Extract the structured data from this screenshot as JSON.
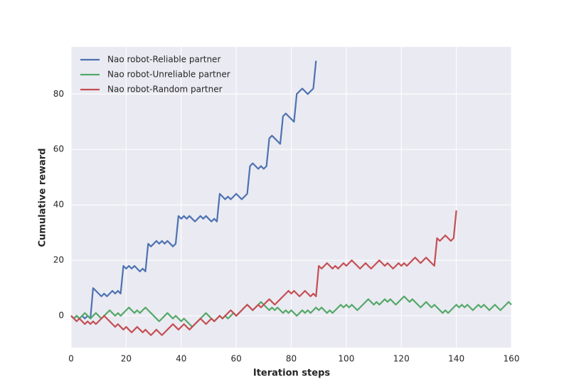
{
  "chart_data": {
    "type": "line",
    "xlabel": "Iteration steps",
    "ylabel": "Cumulative reward",
    "xlim": [
      0,
      160
    ],
    "ylim": [
      -11.5,
      97
    ],
    "xticks": [
      0,
      20,
      40,
      60,
      80,
      100,
      120,
      140,
      160
    ],
    "yticks": [
      0,
      20,
      40,
      60,
      80
    ],
    "grid": true,
    "legend": "upper left",
    "series": [
      {
        "name": "Nao robot-Reliable partner",
        "color": "#4c72b0",
        "x": [
          0,
          1,
          2,
          3,
          4,
          5,
          6,
          7,
          8,
          9,
          10,
          11,
          12,
          13,
          14,
          15,
          16,
          17,
          18,
          19,
          20,
          21,
          22,
          23,
          24,
          25,
          26,
          27,
          28,
          29,
          30,
          31,
          32,
          33,
          34,
          35,
          36,
          37,
          38,
          39,
          40,
          41,
          42,
          43,
          44,
          45,
          46,
          47,
          48,
          49,
          50,
          51,
          52,
          53,
          54,
          55,
          56,
          57,
          58,
          59,
          60,
          61,
          62,
          63,
          64,
          65,
          66,
          67,
          68,
          69,
          70,
          71,
          72,
          73,
          74,
          75,
          76,
          77,
          78,
          79,
          80,
          81,
          82,
          83,
          84,
          85,
          86,
          87,
          88,
          89
        ],
        "values": [
          0,
          -1,
          0,
          -1,
          0,
          -1,
          0,
          -1,
          10,
          9,
          8,
          7,
          8,
          7,
          8,
          9,
          8,
          9,
          8,
          18,
          17,
          18,
          17,
          18,
          17,
          16,
          17,
          16,
          26,
          25,
          26,
          27,
          26,
          27,
          26,
          27,
          26,
          25,
          26,
          36,
          35,
          36,
          35,
          36,
          35,
          34,
          35,
          36,
          35,
          36,
          35,
          34,
          35,
          34,
          44,
          43,
          42,
          43,
          42,
          43,
          44,
          43,
          42,
          43,
          44,
          54,
          55,
          54,
          53,
          54,
          53,
          54,
          64,
          65,
          64,
          63,
          62,
          72,
          73,
          72,
          71,
          70,
          80,
          81,
          82,
          81,
          80,
          81,
          82,
          92
        ]
      },
      {
        "name": "Nao robot-Unreliable partner",
        "color": "#55a868",
        "x": [
          0,
          1,
          2,
          3,
          4,
          5,
          6,
          7,
          8,
          9,
          10,
          11,
          12,
          13,
          14,
          15,
          16,
          17,
          18,
          19,
          20,
          21,
          22,
          23,
          24,
          25,
          26,
          27,
          28,
          29,
          30,
          31,
          32,
          33,
          34,
          35,
          36,
          37,
          38,
          39,
          40,
          41,
          42,
          43,
          44,
          45,
          46,
          47,
          48,
          49,
          50,
          51,
          52,
          53,
          54,
          55,
          56,
          57,
          58,
          59,
          60,
          61,
          62,
          63,
          64,
          65,
          66,
          67,
          68,
          69,
          70,
          71,
          72,
          73,
          74,
          75,
          76,
          77,
          78,
          79,
          80,
          81,
          82,
          83,
          84,
          85,
          86,
          87,
          88,
          89,
          90,
          91,
          92,
          93,
          94,
          95,
          96,
          97,
          98,
          99,
          100,
          101,
          102,
          103,
          104,
          105,
          106,
          107,
          108,
          109,
          110,
          111,
          112,
          113,
          114,
          115,
          116,
          117,
          118,
          119,
          120,
          121,
          122,
          123,
          124,
          125,
          126,
          127,
          128,
          129,
          130,
          131,
          132,
          133,
          134,
          135,
          136,
          137,
          138,
          139,
          140,
          141,
          142,
          143,
          144,
          145,
          146,
          147,
          148,
          149,
          150,
          151,
          152,
          153,
          154,
          155,
          156,
          157,
          158,
          159,
          160
        ],
        "values": [
          0,
          -1,
          0,
          -1,
          0,
          1,
          0,
          -1,
          0,
          1,
          0,
          -1,
          0,
          1,
          2,
          1,
          0,
          1,
          0,
          1,
          2,
          3,
          2,
          1,
          2,
          1,
          2,
          3,
          2,
          1,
          0,
          -1,
          -2,
          -1,
          0,
          1,
          0,
          -1,
          0,
          -1,
          -2,
          -1,
          -2,
          -3,
          -4,
          -3,
          -2,
          -1,
          0,
          1,
          0,
          -1,
          -2,
          -1,
          0,
          -1,
          0,
          -1,
          0,
          1,
          0,
          1,
          2,
          3,
          4,
          3,
          2,
          3,
          4,
          5,
          4,
          3,
          2,
          3,
          2,
          3,
          2,
          1,
          2,
          1,
          2,
          1,
          0,
          1,
          2,
          1,
          2,
          1,
          2,
          3,
          2,
          3,
          2,
          1,
          2,
          1,
          2,
          3,
          4,
          3,
          4,
          3,
          4,
          3,
          2,
          3,
          4,
          5,
          6,
          5,
          4,
          5,
          4,
          5,
          6,
          5,
          6,
          5,
          4,
          5,
          6,
          7,
          6,
          5,
          6,
          5,
          4,
          3,
          4,
          5,
          4,
          3,
          4,
          3,
          2,
          1,
          2,
          1,
          2,
          3,
          4,
          3,
          4,
          3,
          4,
          3,
          2,
          3,
          4,
          3,
          4,
          3,
          2,
          3,
          4,
          3,
          2,
          3,
          4,
          5,
          4
        ]
      },
      {
        "name": "Nao robot-Random partner",
        "color": "#c44e52",
        "x": [
          0,
          1,
          2,
          3,
          4,
          5,
          6,
          7,
          8,
          9,
          10,
          11,
          12,
          13,
          14,
          15,
          16,
          17,
          18,
          19,
          20,
          21,
          22,
          23,
          24,
          25,
          26,
          27,
          28,
          29,
          30,
          31,
          32,
          33,
          34,
          35,
          36,
          37,
          38,
          39,
          40,
          41,
          42,
          43,
          44,
          45,
          46,
          47,
          48,
          49,
          50,
          51,
          52,
          53,
          54,
          55,
          56,
          57,
          58,
          59,
          60,
          61,
          62,
          63,
          64,
          65,
          66,
          67,
          68,
          69,
          70,
          71,
          72,
          73,
          74,
          75,
          76,
          77,
          78,
          79,
          80,
          81,
          82,
          83,
          84,
          85,
          86,
          87,
          88,
          89,
          90,
          91,
          92,
          93,
          94,
          95,
          96,
          97,
          98,
          99,
          100,
          101,
          102,
          103,
          104,
          105,
          106,
          107,
          108,
          109,
          110,
          111,
          112,
          113,
          114,
          115,
          116,
          117,
          118,
          119,
          120,
          121,
          122,
          123,
          124,
          125,
          126,
          127,
          128,
          129,
          130,
          131,
          132,
          133,
          134,
          135,
          136,
          137,
          138,
          139,
          140
        ],
        "values": [
          0,
          -1,
          -2,
          -1,
          -2,
          -3,
          -2,
          -3,
          -2,
          -3,
          -2,
          -1,
          0,
          -1,
          -2,
          -3,
          -4,
          -3,
          -4,
          -5,
          -4,
          -5,
          -6,
          -5,
          -4,
          -5,
          -6,
          -5,
          -6,
          -7,
          -6,
          -5,
          -6,
          -7,
          -6,
          -5,
          -4,
          -3,
          -4,
          -5,
          -4,
          -3,
          -4,
          -5,
          -4,
          -3,
          -2,
          -1,
          -2,
          -3,
          -2,
          -1,
          -2,
          -1,
          0,
          -1,
          0,
          1,
          2,
          1,
          0,
          1,
          2,
          3,
          4,
          3,
          2,
          3,
          4,
          3,
          4,
          5,
          6,
          5,
          4,
          5,
          6,
          7,
          8,
          9,
          8,
          9,
          8,
          7,
          8,
          9,
          8,
          7,
          8,
          7,
          18,
          17,
          18,
          19,
          18,
          17,
          18,
          17,
          18,
          19,
          18,
          19,
          20,
          19,
          18,
          17,
          18,
          19,
          18,
          17,
          18,
          19,
          20,
          19,
          18,
          19,
          18,
          17,
          18,
          19,
          18,
          19,
          18,
          19,
          20,
          21,
          20,
          19,
          20,
          21,
          20,
          19,
          18,
          28,
          27,
          28,
          29,
          28,
          27,
          28,
          38
        ]
      }
    ]
  }
}
